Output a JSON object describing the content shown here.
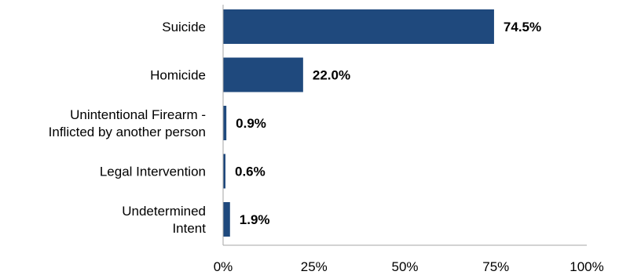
{
  "chart_data": {
    "type": "bar",
    "orientation": "horizontal",
    "categories": [
      [
        "Suicide"
      ],
      [
        "Homicide"
      ],
      [
        "Unintentional Firearm -",
        "Inflicted by another person"
      ],
      [
        "Legal Intervention"
      ],
      [
        "Undetermined",
        "Intent"
      ]
    ],
    "values": [
      74.5,
      22.0,
      0.9,
      0.6,
      1.9
    ],
    "value_labels": [
      "74.5%",
      "22.0%",
      "0.9%",
      "0.6%",
      "1.9%"
    ],
    "xlim": [
      0,
      100
    ],
    "xticks": [
      0,
      25,
      50,
      75,
      100
    ],
    "xtick_labels": [
      "0%",
      "25%",
      "50%",
      "75%",
      "100%"
    ],
    "title": "",
    "xlabel": "",
    "ylabel": "",
    "grid": false,
    "bar_color": "#1F497D",
    "axis_color": "#A6A6A6"
  }
}
